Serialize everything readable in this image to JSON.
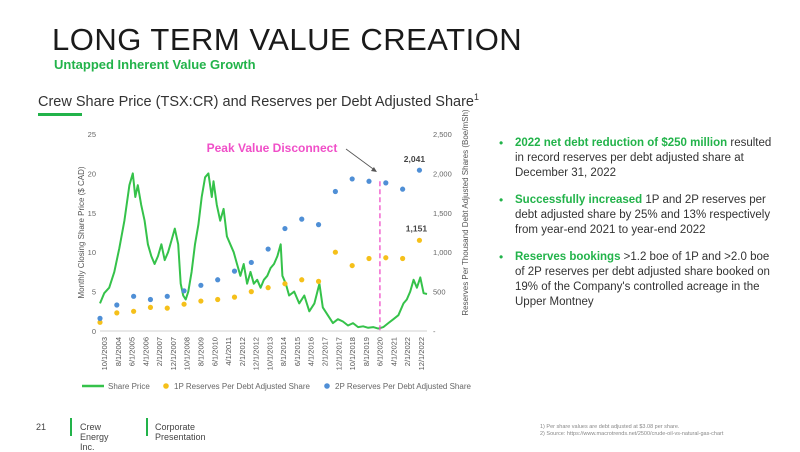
{
  "header": {
    "title": "LONG TERM VALUE CREATION",
    "subtitle": "Untapped Inherent Value Growth",
    "chart_heading": "Crew Share Price (TSX:CR) and Reserves per Debt Adjusted  Share",
    "chart_heading_sup": "1"
  },
  "chart_data": {
    "type": "line",
    "ylabel_left": "Monthly Closing Share Price ($ CAD)",
    "ylabel_right": "Reserves Per Thousand Debt Adjusted Shares (Boe/mSh)",
    "ylim_left": [
      0,
      25
    ],
    "ylim_right": [
      0,
      2500
    ],
    "yticks_left": [
      "0",
      "5",
      "10",
      "15",
      "20",
      "25"
    ],
    "yticks_right": [
      "-",
      "500",
      "1,000",
      "1,500",
      "2,000",
      "2,500"
    ],
    "xticks": [
      "10/1/2003",
      "8/1/2004",
      "6/1/2005",
      "4/1/2006",
      "2/1/2007",
      "12/1/2007",
      "10/1/2008",
      "8/1/2009",
      "6/1/2010",
      "4/1/2011",
      "2/1/2012",
      "12/1/2012",
      "10/1/2013",
      "8/1/2014",
      "6/1/2015",
      "4/1/2016",
      "2/1/2017",
      "12/1/2017",
      "10/1/2018",
      "8/1/2019",
      "6/1/2020",
      "4/1/2021",
      "2/1/2022",
      "12/1/2022"
    ],
    "annotation": "Peak Value Disconnect",
    "data_labels": [
      "2,041",
      "1,151"
    ],
    "legend": [
      "Share Price",
      "1P Reserves Per Debt Adjusted Share",
      "2P Reserves Per Debt Adjusted Share"
    ],
    "legend_position": "bottom",
    "colors": {
      "share": "#35c24a",
      "p1": "#f5c01a",
      "p2": "#4f8fd6",
      "annotation": "#f04fc8"
    },
    "x_range": [
      2003.75,
      2023.2
    ],
    "share_price": {
      "x": [
        2003.75,
        2004.0,
        2004.3,
        2004.6,
        2004.9,
        2005.2,
        2005.5,
        2005.7,
        2005.85,
        2006.0,
        2006.2,
        2006.4,
        2006.6,
        2006.8,
        2007.0,
        2007.2,
        2007.4,
        2007.6,
        2007.8,
        2008.0,
        2008.2,
        2008.4,
        2008.55,
        2008.7,
        2008.85,
        2009.0,
        2009.2,
        2009.4,
        2009.6,
        2009.8,
        2010.0,
        2010.2,
        2010.4,
        2010.5,
        2010.7,
        2010.9,
        2011.1,
        2011.3,
        2011.5,
        2011.7,
        2011.9,
        2012.1,
        2012.3,
        2012.5,
        2012.7,
        2012.9,
        2013.1,
        2013.3,
        2013.5,
        2013.7,
        2013.9,
        2014.1,
        2014.3,
        2014.5,
        2014.6,
        2014.8,
        2015.0,
        2015.3,
        2015.6,
        2015.9,
        2016.2,
        2016.5,
        2016.8,
        2017.0,
        2017.3,
        2017.6,
        2017.9,
        2018.2,
        2018.5,
        2018.8,
        2019.1,
        2019.4,
        2019.7,
        2020.0,
        2020.3,
        2020.6,
        2020.9,
        2021.2,
        2021.5,
        2021.8,
        2022.0,
        2022.2,
        2022.4,
        2022.6,
        2022.8,
        2023.0,
        2023.2
      ],
      "values": [
        3.5,
        4.8,
        5.5,
        7.5,
        10.5,
        14.0,
        18.5,
        20.0,
        17.0,
        18.5,
        16.0,
        14.0,
        11.0,
        9.5,
        8.5,
        9.5,
        11.0,
        9.0,
        10.0,
        11.5,
        13.0,
        11.0,
        6.0,
        4.5,
        4.0,
        5.0,
        7.5,
        11.0,
        13.5,
        17.0,
        19.5,
        20.0,
        17.0,
        19.0,
        16.0,
        14.0,
        15.5,
        12.0,
        11.0,
        10.0,
        8.5,
        7.0,
        8.5,
        6.0,
        7.5,
        6.0,
        6.5,
        5.5,
        6.5,
        7.0,
        8.0,
        8.5,
        9.5,
        11.0,
        7.0,
        6.0,
        4.5,
        5.0,
        3.5,
        4.5,
        2.5,
        3.5,
        6.0,
        3.0,
        2.0,
        1.0,
        1.5,
        1.2,
        0.7,
        1.0,
        0.5,
        0.6,
        0.4,
        0.5,
        0.3,
        0.5,
        1.0,
        1.5,
        2.0,
        3.5,
        4.0,
        5.0,
        6.5,
        5.5,
        6.8,
        4.8,
        4.7
      ]
    },
    "reserves_1p": {
      "x": [
        2003.75,
        2004.75,
        2005.75,
        2006.75,
        2007.75,
        2008.75,
        2009.75,
        2010.75,
        2011.75,
        2012.75,
        2013.75,
        2014.75,
        2015.75,
        2016.75,
        2017.75,
        2018.75,
        2019.75,
        2020.75,
        2021.75,
        2022.75
      ],
      "values": [
        110,
        230,
        250,
        300,
        290,
        340,
        380,
        400,
        430,
        500,
        550,
        600,
        650,
        630,
        1000,
        830,
        920,
        930,
        920,
        1151
      ]
    },
    "reserves_2p": {
      "x": [
        2003.75,
        2004.75,
        2005.75,
        2006.75,
        2007.75,
        2008.75,
        2009.75,
        2010.75,
        2011.75,
        2012.75,
        2013.75,
        2014.75,
        2015.75,
        2016.75,
        2017.75,
        2018.75,
        2019.75,
        2020.75,
        2021.75,
        2022.75
      ],
      "values": [
        160,
        330,
        440,
        400,
        440,
        510,
        580,
        650,
        760,
        870,
        1040,
        1300,
        1420,
        1350,
        1770,
        1930,
        1900,
        1880,
        1800,
        2041
      ]
    },
    "peak_marker_x": 2020.4
  },
  "bullets": [
    {
      "highlight": "2022 net debt reduction of $250 million",
      "text": " resulted in record reserves per debt adjusted share at December 31, 2022"
    },
    {
      "highlight": "Successfully increased",
      "text": " 1P and 2P reserves per debt adjusted share by 25% and 13% respectively from year-end 2021 to year-end 2022"
    },
    {
      "highlight": "Reserves bookings",
      "text": " >1.2 boe of 1P and >2.0 boe of 2P reserves per debt adjusted share booked on 19% of the Company's controlled acreage in the Upper Montney"
    }
  ],
  "footer": {
    "page_number": "21",
    "company": "Crew Energy Inc.",
    "presentation": "Corporate Presentation"
  },
  "notes": [
    "1)   Per share values are debt adjusted at $3.08 per share.",
    "2)   Source: https://www.macrotrends.net/2500/crude-oil-vs-natural-gas-chart"
  ]
}
